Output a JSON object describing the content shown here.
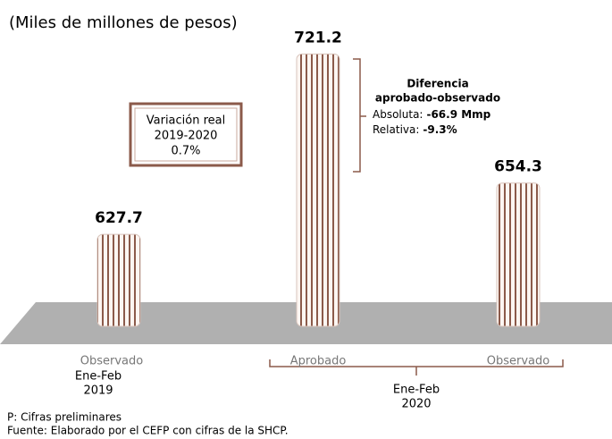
{
  "chart_data": {
    "type": "bar",
    "subtitle": "(Miles de millones de pesos)",
    "categories": [
      "Observado",
      "Aprobado",
      "Observado"
    ],
    "values": [
      627.7,
      721.2,
      654.3
    ],
    "ylim": [
      580,
      726
    ],
    "color": "#8b5a4a",
    "groups": [
      [
        "Ene-Feb",
        "2019"
      ],
      [
        "Ene-Feb",
        "2020"
      ]
    ],
    "variation": {
      "lines": [
        "Variación real",
        "2019-2020",
        "0.7%"
      ]
    },
    "difference": {
      "title": [
        "Diferencia",
        "aprobado-observado"
      ],
      "absolute_label": "Absoluta:",
      "absolute_value": "-66.9 Mmp",
      "relative_label": "Relativa:",
      "relative_value": "-9.3%"
    },
    "notes": [
      "P: Cifras preliminares",
      "Fuente: Elaborado por el CEFP con cifras de la SHCP."
    ]
  }
}
